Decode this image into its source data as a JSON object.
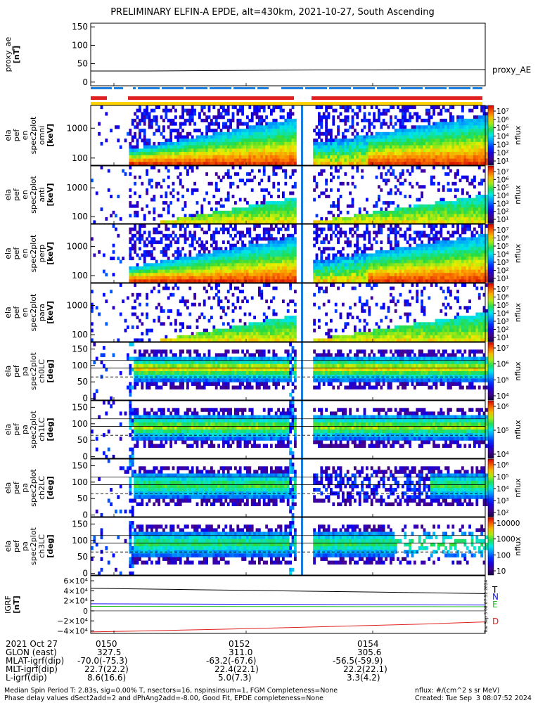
{
  "title": "PRELIMINARY ELFIN-A EPDE, alt=430km, 2021-10-27, South Ascending",
  "colors": {
    "accent_blue": "#1a7fe0",
    "accent_red": "#e02020",
    "accent_yellow": "#ffd200",
    "T": "#000000",
    "N": "#1010ff",
    "E": "#18c018",
    "D": "#e02020"
  },
  "panels": [
    {
      "id": "proxy",
      "ylabel_lines": [
        "proxy_ae",
        "[nT]"
      ],
      "right_label": "proxy_AE",
      "yticks": [
        "150",
        "100",
        "50",
        "0"
      ],
      "ylim": [
        -10,
        160
      ]
    },
    {
      "id": "en_omni",
      "ylabel_lines": [
        "ela",
        "pef",
        "en",
        "spec2plot",
        "omni",
        "[keV]"
      ],
      "yticks": [
        "1000",
        "100"
      ],
      "cbar_ticks": [
        "10⁷",
        "10⁶",
        "10⁵",
        "10⁴",
        "10³",
        "10²",
        "10¹"
      ],
      "cbar_label": "nflux"
    },
    {
      "id": "en_anti",
      "ylabel_lines": [
        "ela",
        "pef",
        "en",
        "spec2plot",
        "anti",
        "[keV]"
      ],
      "yticks": [
        "1000",
        "100"
      ],
      "cbar_ticks": [
        "10⁷",
        "10⁶",
        "10⁵",
        "10⁴",
        "10³",
        "10²",
        "10¹"
      ],
      "cbar_label": "nflux"
    },
    {
      "id": "en_perp",
      "ylabel_lines": [
        "ela",
        "pef",
        "en",
        "spec2plot",
        "perp",
        "[keV]"
      ],
      "yticks": [
        "1000",
        "100"
      ],
      "cbar_ticks": [
        "10⁷",
        "10⁶",
        "10⁵",
        "10⁴",
        "10³",
        "10²",
        "10¹"
      ],
      "cbar_label": "nflux"
    },
    {
      "id": "en_para",
      "ylabel_lines": [
        "ela",
        "pef",
        "en",
        "spec2plot",
        "para",
        "[keV]"
      ],
      "yticks": [
        "1000",
        "100"
      ],
      "cbar_ticks": [
        "10⁷",
        "10⁶",
        "10⁵",
        "10⁴",
        "10³",
        "10²",
        "10¹"
      ],
      "cbar_label": "nflux"
    },
    {
      "id": "pa_ch0",
      "ylabel_lines": [
        "ela",
        "pef",
        "pa",
        "spec2plot",
        "ch0LC",
        "[deg]"
      ],
      "yticks": [
        "150",
        "100",
        "50",
        "0"
      ],
      "cbar_ticks": [
        "10⁷",
        "10⁶",
        "10⁵",
        "10⁴"
      ],
      "cbar_label": "nflux"
    },
    {
      "id": "pa_ch1",
      "ylabel_lines": [
        "ela",
        "pef",
        "pa",
        "spec2plot",
        "ch1LC",
        "[deg]"
      ],
      "yticks": [
        "150",
        "100",
        "50",
        "0"
      ],
      "cbar_ticks": [
        "10⁶",
        "10⁵",
        "10⁴"
      ],
      "cbar_label": "nflux"
    },
    {
      "id": "pa_ch2",
      "ylabel_lines": [
        "ela",
        "pef",
        "pa",
        "spec2plot",
        "ch2LC",
        "[deg]"
      ],
      "yticks": [
        "150",
        "100",
        "50",
        "0"
      ],
      "cbar_ticks": [
        "10⁶",
        "10⁵",
        "10⁴",
        "10³",
        "10²"
      ],
      "cbar_label": "nflux"
    },
    {
      "id": "pa_ch3",
      "ylabel_lines": [
        "ela",
        "pef",
        "pa",
        "spec2plot",
        "ch3LC",
        "[deg]"
      ],
      "yticks": [
        "150",
        "100",
        "50",
        "0"
      ],
      "cbar_ticks": [
        "10000",
        "1000",
        "100",
        "10"
      ],
      "cbar_label": "nflux"
    },
    {
      "id": "igrf",
      "ylabel_lines": [
        "IGRF",
        "[nT]"
      ],
      "yticks": [
        "6×10⁴",
        "4×10⁴",
        "2×10⁴",
        "0",
        "−2×10⁴",
        "−4×10⁴"
      ],
      "legend": [
        "T",
        "N",
        "E",
        "D"
      ]
    }
  ],
  "chart_data": {
    "type": "heatmap",
    "x": [
      "0150",
      "0152",
      "0154"
    ],
    "proxy_ae": {
      "values": [
        30,
        30,
        31,
        32,
        33,
        33,
        34,
        34
      ],
      "ylim": [
        -10,
        160
      ]
    },
    "energy_axis": {
      "scale": "log",
      "ticks": [
        100,
        1000
      ],
      "unit": "keV"
    },
    "pitch_angle_axis": {
      "ticks": [
        0,
        50,
        100,
        150
      ],
      "unit": "deg"
    },
    "igrf": {
      "ylim": [
        -45000,
        70000
      ],
      "series": [
        {
          "name": "T",
          "values": [
            45000,
            43500,
            42000,
            40500,
            39000,
            37500,
            36000,
            34500
          ]
        },
        {
          "name": "N",
          "values": [
            14000,
            13700,
            13400,
            13000,
            12700,
            12300,
            12000,
            11600
          ]
        },
        {
          "name": "E",
          "values": [
            9000,
            8900,
            8800,
            8700,
            8600,
            8500,
            8400,
            8300
          ]
        },
        {
          "name": "D",
          "values": [
            -42000,
            -40000,
            -37500,
            -35000,
            -32000,
            -29000,
            -26000,
            -22000
          ]
        }
      ]
    }
  },
  "footer": {
    "rows": [
      [
        "2021 Oct 27",
        "0150",
        "0152",
        "0154"
      ],
      [
        "GLON (east)",
        "327.5",
        "311.0",
        "305.6"
      ],
      [
        "MLAT-igrf(dip)",
        "-70.0(-75.3)",
        "-63.2(-67.6)",
        "-56.5(-59.9)"
      ],
      [
        "MLT-igrf(dip)",
        "22.7(22.2)",
        "22.4(22.1)",
        "22.2(22.1)"
      ],
      [
        "L-igrf(dip)",
        "8.6(16.6)",
        "5.0(7.3)",
        "3.3(4.2)"
      ]
    ],
    "note1": "Median Spin Period T: 2.83s, sig=0.00% T, nsectors=16, nspinsinsum=1, FGM Completeness=None",
    "note2": "Phase delay values dSect2add=2 and dPhAng2add=-8.00, Good Fit, EPDE completeness=None",
    "units": "nflux: #/(cm^2 s sr MeV)",
    "created": "Created: Tue Sep  3 08:07:52 2024",
    "side_stamp": "Tue Sep  3 08:07:52 2024"
  }
}
